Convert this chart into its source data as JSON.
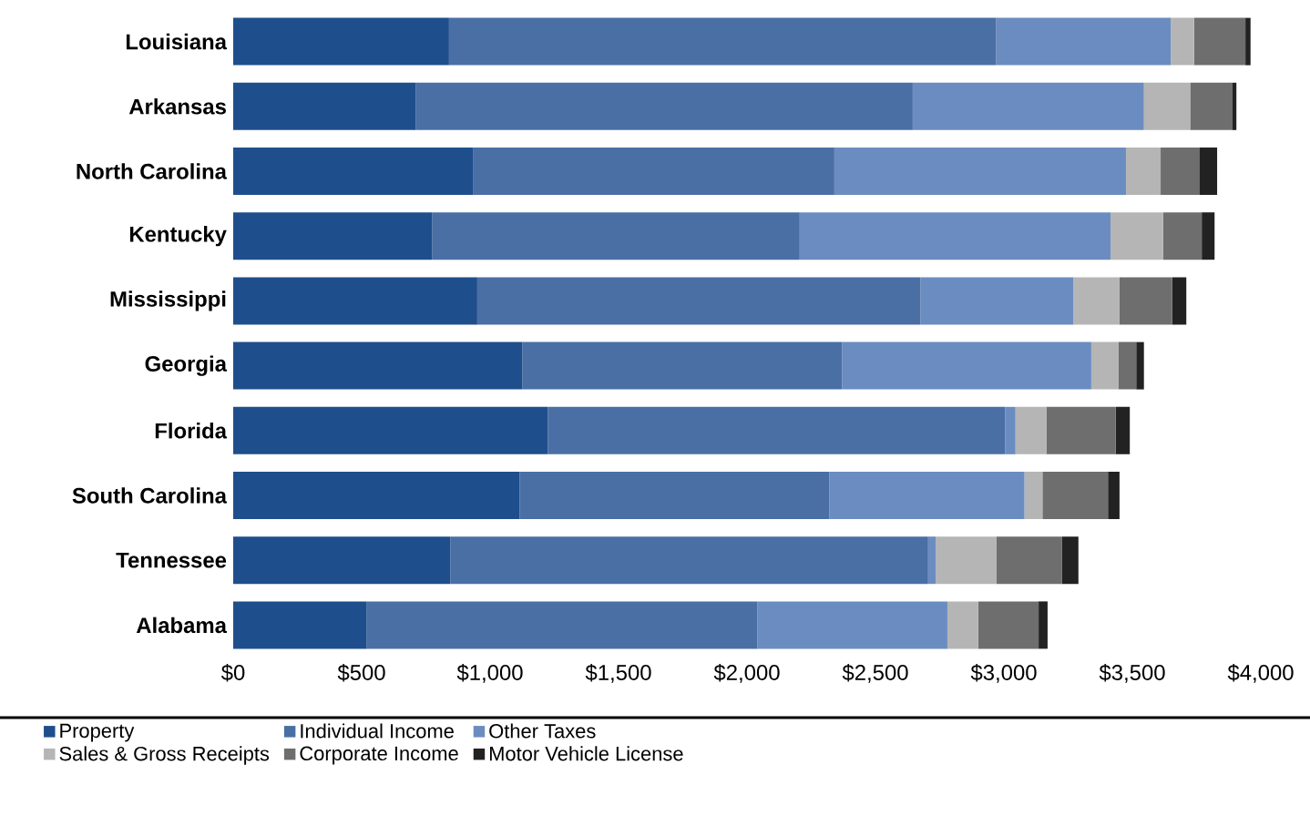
{
  "chart_data": {
    "type": "bar",
    "orientation": "horizontal",
    "stacked": true,
    "categories": [
      "Louisiana",
      "Arkansas",
      "North Carolina",
      "Kentucky",
      "Mississippi",
      "Georgia",
      "Florida",
      "South Carolina",
      "Tennessee",
      "Alabama"
    ],
    "series": [
      {
        "name": "Property",
        "color": "#1f4e8c",
        "values": [
          840,
          710,
          935,
          775,
          950,
          1125,
          1225,
          1115,
          845,
          520
        ]
      },
      {
        "name": "Individual Income",
        "color": "#4a6fa5",
        "values": [
          2130,
          1935,
          1405,
          1430,
          1725,
          1245,
          1780,
          1205,
          1860,
          1520
        ]
      },
      {
        "name": "Other Taxes",
        "color": "#6b8cc0",
        "values": [
          680,
          900,
          1135,
          1210,
          595,
          970,
          40,
          760,
          30,
          740
        ]
      },
      {
        "name": "Sales & Gross Receipts",
        "color": "#b5b5b5",
        "values": [
          90,
          180,
          135,
          205,
          180,
          105,
          120,
          70,
          235,
          120
        ]
      },
      {
        "name": "Corporate Income",
        "color": "#6e6e6e",
        "values": [
          200,
          165,
          150,
          150,
          205,
          70,
          270,
          255,
          255,
          235
        ]
      },
      {
        "name": "Motor Vehicle License",
        "color": "#222222",
        "values": [
          20,
          15,
          70,
          50,
          55,
          30,
          55,
          45,
          65,
          35
        ]
      }
    ],
    "xlim": [
      0,
      4000
    ],
    "xticks": [
      {
        "value": 0,
        "label": "$0"
      },
      {
        "value": 500,
        "label": "$500"
      },
      {
        "value": 1000,
        "label": "$1,000"
      },
      {
        "value": 1500,
        "label": "$1,500"
      },
      {
        "value": 2000,
        "label": "$2,000"
      },
      {
        "value": 2500,
        "label": "$2,500"
      },
      {
        "value": 3000,
        "label": "$3,000"
      },
      {
        "value": 3500,
        "label": "$3,500"
      },
      {
        "value": 4000,
        "label": "$4,000"
      }
    ],
    "legend": "bottom"
  }
}
